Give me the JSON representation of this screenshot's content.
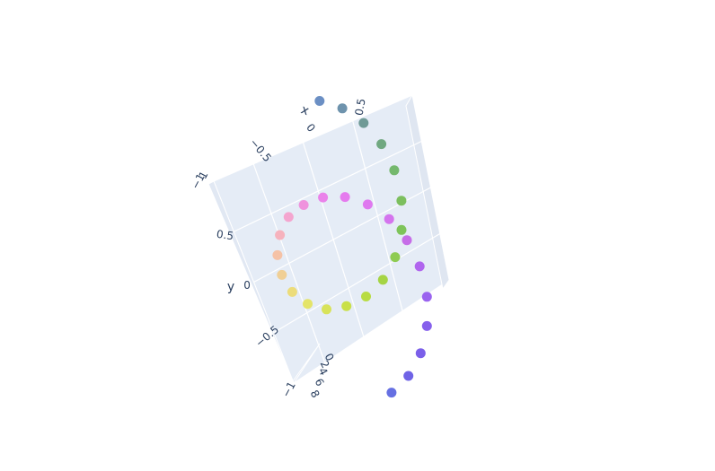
{
  "chart_data": {
    "type": "scatter",
    "dimensions": 3,
    "title": "",
    "xlabel": "x",
    "ylabel": "y",
    "zlabel": "",
    "x_ticks": [
      "−1",
      "−0.5",
      "0",
      "0.5"
    ],
    "y_ticks": [
      "−1",
      "−0.5",
      "0",
      "0.5",
      "1"
    ],
    "z_ticks": [
      "0",
      "2",
      "4",
      "6",
      "8"
    ],
    "scene_background": "#e5ecf6",
    "grid": true,
    "legend": "none",
    "series": [
      {
        "points": [
          {
            "x": 0.0,
            "y": 1.0,
            "z": 0.0,
            "color": "#6b8fc4"
          },
          {
            "x": 0.31,
            "y": 0.95,
            "z": 0.3,
            "color": "#6e93ad"
          },
          {
            "x": 0.59,
            "y": 0.81,
            "z": 0.6,
            "color": "#6f9a96"
          },
          {
            "x": 0.81,
            "y": 0.59,
            "z": 0.9,
            "color": "#70a880"
          },
          {
            "x": 0.95,
            "y": 0.31,
            "z": 1.2,
            "color": "#74b86d"
          },
          {
            "x": 1.0,
            "y": 0.0,
            "z": 1.6,
            "color": "#7cbf5e"
          },
          {
            "x": 0.95,
            "y": -0.31,
            "z": 1.9,
            "color": "#7ec45a"
          },
          {
            "x": 0.81,
            "y": -0.59,
            "z": 2.2,
            "color": "#8ecb52"
          },
          {
            "x": 0.59,
            "y": -0.81,
            "z": 2.5,
            "color": "#a5d444"
          },
          {
            "x": 0.31,
            "y": -0.95,
            "z": 2.8,
            "color": "#b8dc42"
          },
          {
            "x": 0.0,
            "y": -1.0,
            "z": 3.1,
            "color": "#c9e048"
          },
          {
            "x": -0.31,
            "y": -0.95,
            "z": 3.5,
            "color": "#d8e35a"
          },
          {
            "x": -0.59,
            "y": -0.81,
            "z": 3.8,
            "color": "#e4e468"
          },
          {
            "x": -0.81,
            "y": -0.59,
            "z": 4.1,
            "color": "#ecdc7a"
          },
          {
            "x": -0.95,
            "y": -0.31,
            "z": 4.4,
            "color": "#f0cf95"
          },
          {
            "x": -1.0,
            "y": 0.0,
            "z": 4.7,
            "color": "#f5c2a6"
          },
          {
            "x": -0.95,
            "y": 0.31,
            "z": 5.0,
            "color": "#f6b2bd"
          },
          {
            "x": -0.81,
            "y": 0.59,
            "z": 5.3,
            "color": "#f4a5cf"
          },
          {
            "x": -0.59,
            "y": 0.81,
            "z": 5.7,
            "color": "#ef93dd"
          },
          {
            "x": -0.31,
            "y": 0.95,
            "z": 6.0,
            "color": "#ea82ea"
          },
          {
            "x": 0.0,
            "y": 1.0,
            "z": 6.3,
            "color": "#e57bee"
          },
          {
            "x": 0.31,
            "y": 0.95,
            "z": 6.6,
            "color": "#df79ef"
          },
          {
            "x": 0.59,
            "y": 0.81,
            "z": 6.9,
            "color": "#d474ee"
          },
          {
            "x": 0.81,
            "y": 0.59,
            "z": 7.2,
            "color": "#c66de8"
          },
          {
            "x": 0.95,
            "y": 0.31,
            "z": 7.5,
            "color": "#b065ee"
          },
          {
            "x": 1.0,
            "y": 0.0,
            "z": 7.9,
            "color": "#9a63ef"
          },
          {
            "x": 0.95,
            "y": -0.31,
            "z": 8.2,
            "color": "#8660ec"
          },
          {
            "x": 0.81,
            "y": -0.59,
            "z": 8.5,
            "color": "#7b5fe9"
          },
          {
            "x": 0.59,
            "y": -0.81,
            "z": 8.8,
            "color": "#6f63e6"
          },
          {
            "x": 0.31,
            "y": -0.95,
            "z": 9.1,
            "color": "#6670e2"
          }
        ]
      }
    ]
  }
}
